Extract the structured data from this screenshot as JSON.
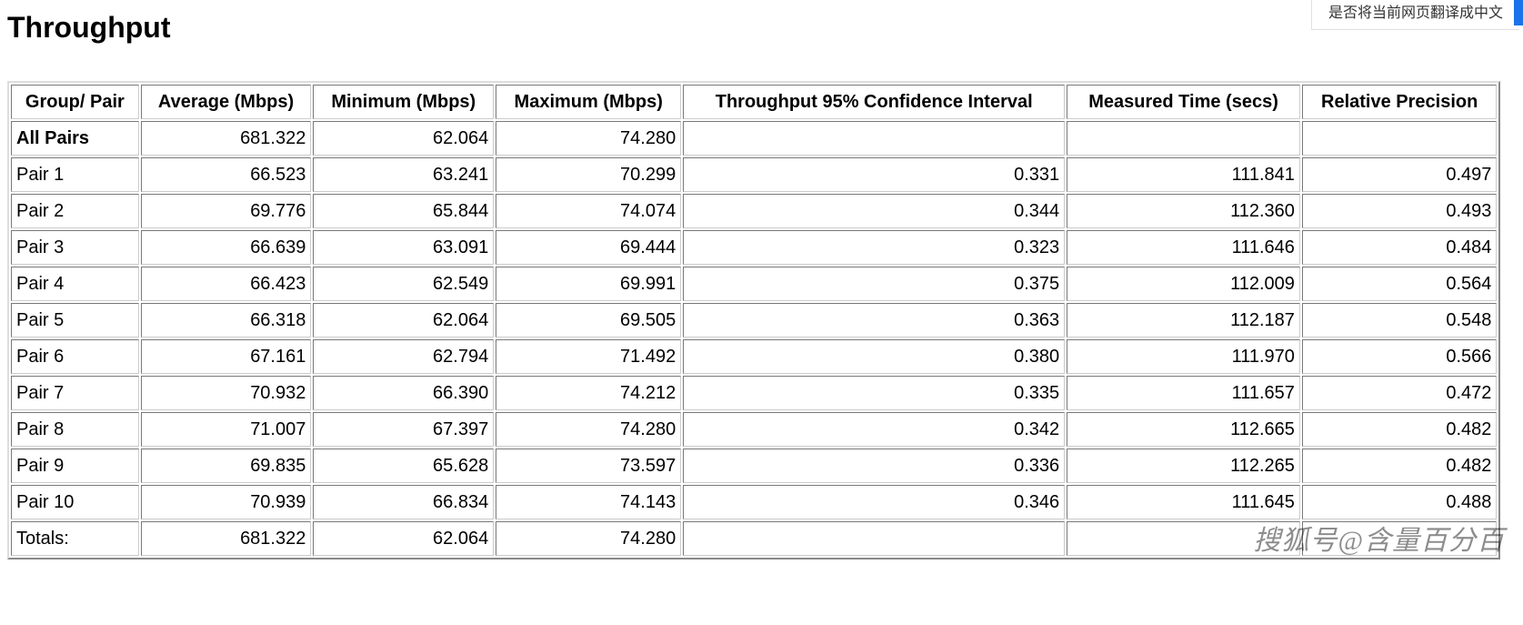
{
  "title": "Throughput",
  "translate_prompt": "是否将当前网页翻译成中文",
  "watermark": "搜狐号@含量百分百",
  "table": {
    "columns": [
      "Group/ Pair",
      "Average (Mbps)",
      "Minimum (Mbps)",
      "Maximum (Mbps)",
      "Throughput 95% Confidence Interval",
      "Measured Time (secs)",
      "Relative Precision"
    ],
    "rows": [
      {
        "bold": true,
        "label": "All Pairs",
        "avg": "681.322",
        "min": "62.064",
        "max": "74.280",
        "ci": "",
        "time": "",
        "prec": ""
      },
      {
        "bold": false,
        "label": "Pair 1",
        "avg": "66.523",
        "min": "63.241",
        "max": "70.299",
        "ci": "0.331",
        "time": "111.841",
        "prec": "0.497"
      },
      {
        "bold": false,
        "label": "Pair 2",
        "avg": "69.776",
        "min": "65.844",
        "max": "74.074",
        "ci": "0.344",
        "time": "112.360",
        "prec": "0.493"
      },
      {
        "bold": false,
        "label": "Pair 3",
        "avg": "66.639",
        "min": "63.091",
        "max": "69.444",
        "ci": "0.323",
        "time": "111.646",
        "prec": "0.484"
      },
      {
        "bold": false,
        "label": "Pair 4",
        "avg": "66.423",
        "min": "62.549",
        "max": "69.991",
        "ci": "0.375",
        "time": "112.009",
        "prec": "0.564"
      },
      {
        "bold": false,
        "label": "Pair 5",
        "avg": "66.318",
        "min": "62.064",
        "max": "69.505",
        "ci": "0.363",
        "time": "112.187",
        "prec": "0.548"
      },
      {
        "bold": false,
        "label": "Pair 6",
        "avg": "67.161",
        "min": "62.794",
        "max": "71.492",
        "ci": "0.380",
        "time": "111.970",
        "prec": "0.566"
      },
      {
        "bold": false,
        "label": "Pair 7",
        "avg": "70.932",
        "min": "66.390",
        "max": "74.212",
        "ci": "0.335",
        "time": "111.657",
        "prec": "0.472"
      },
      {
        "bold": false,
        "label": "Pair 8",
        "avg": "71.007",
        "min": "67.397",
        "max": "74.280",
        "ci": "0.342",
        "time": "112.665",
        "prec": "0.482"
      },
      {
        "bold": false,
        "label": "Pair 9",
        "avg": "69.835",
        "min": "65.628",
        "max": "73.597",
        "ci": "0.336",
        "time": "112.265",
        "prec": "0.482"
      },
      {
        "bold": false,
        "label": "Pair 10",
        "avg": "70.939",
        "min": "66.834",
        "max": "74.143",
        "ci": "0.346",
        "time": "111.645",
        "prec": "0.488"
      },
      {
        "bold": false,
        "label": "Totals:",
        "avg": "681.322",
        "min": "62.064",
        "max": "74.280",
        "ci": "",
        "time": "",
        "prec": ""
      }
    ]
  }
}
